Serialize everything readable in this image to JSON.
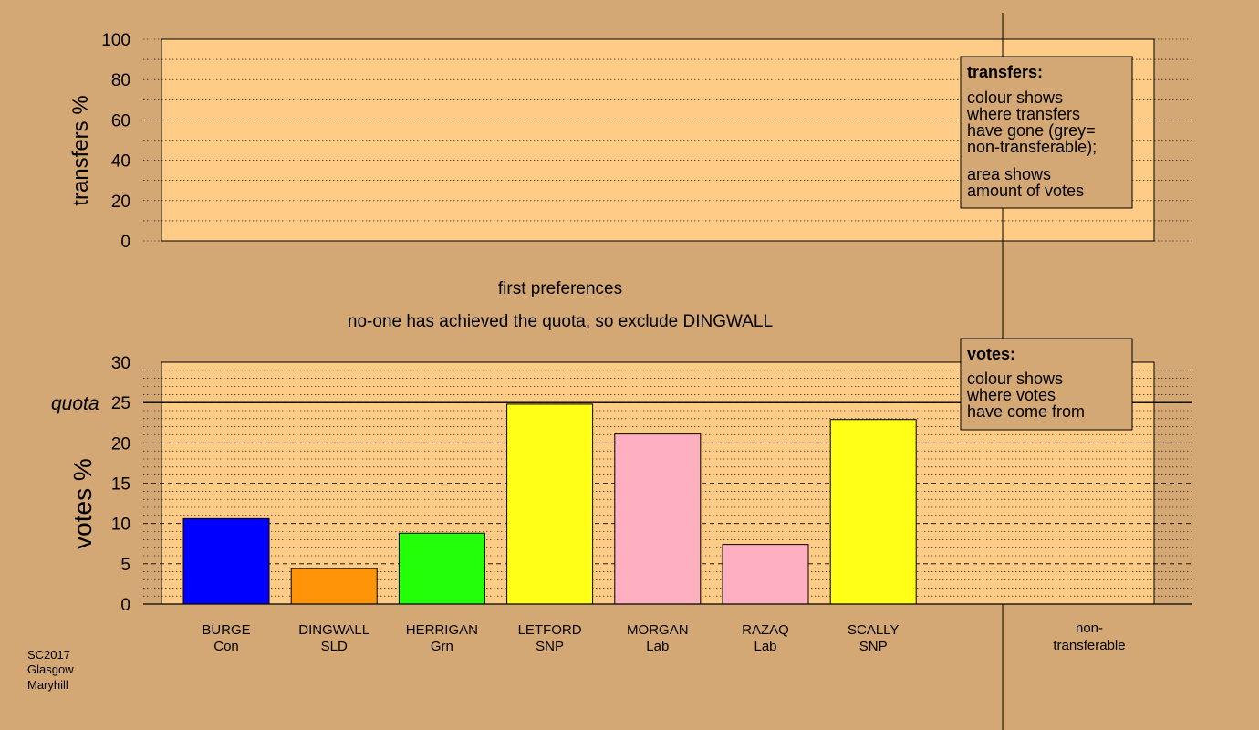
{
  "transfers_panel": {
    "ylabel": "transfers %",
    "ticks": [
      0,
      20,
      40,
      60,
      80,
      100
    ],
    "ylim": [
      0,
      100
    ],
    "legend": {
      "title": "transfers:",
      "lines": [
        "colour shows",
        "where transfers",
        "have gone (grey=",
        "non-transferable);"
      ],
      "lines2": [
        "area shows",
        "amount of votes"
      ]
    }
  },
  "stage": {
    "title": "first preferences",
    "subtitle": "no-one has achieved the quota, so exclude DINGWALL"
  },
  "votes_panel": {
    "ylabel": "votes %",
    "ticks": [
      0,
      5,
      10,
      15,
      20,
      25,
      30
    ],
    "quota_label": "quota",
    "legend": {
      "title": "votes:",
      "lines": [
        "colour shows",
        "where votes",
        "have come from"
      ]
    }
  },
  "footer": {
    "lines": [
      "SC2017",
      "Glasgow",
      "Maryhill"
    ]
  },
  "colors": {
    "background": "#D4A874",
    "plot_fill": "#FFCC88",
    "Con": "#0000FF",
    "SLD": "#FF9408",
    "Grn": "#22FF08",
    "SNP": "#FFFF18",
    "Lab": "#FFB0C0"
  },
  "chart_data": [
    {
      "type": "bar",
      "title": "",
      "ylabel": "transfers %",
      "ylim": [
        0,
        100
      ],
      "categories": [],
      "values": []
    },
    {
      "type": "bar",
      "title": "first preferences",
      "subtitle": "no-one has achieved the quota, so exclude DINGWALL",
      "ylabel": "votes %",
      "ylim": [
        0,
        30
      ],
      "quota": 25,
      "categories": [
        {
          "name": "BURGE",
          "party": "Con"
        },
        {
          "name": "DINGWALL",
          "party": "SLD"
        },
        {
          "name": "HERRIGAN",
          "party": "Grn"
        },
        {
          "name": "LETFORD",
          "party": "SNP"
        },
        {
          "name": "MORGAN",
          "party": "Lab"
        },
        {
          "name": "RAZAQ",
          "party": "Lab"
        },
        {
          "name": "SCALLY",
          "party": "SNP"
        }
      ],
      "values": [
        10.6,
        4.4,
        8.8,
        24.8,
        21.1,
        7.4,
        22.9
      ],
      "extra_category": {
        "name": "non-",
        "party": "transferable"
      }
    }
  ]
}
